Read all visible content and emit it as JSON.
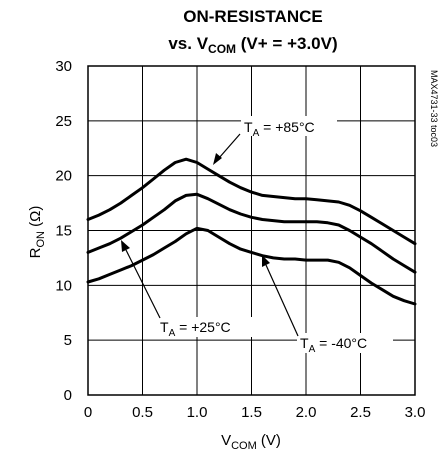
{
  "chart_data": {
    "type": "line",
    "title_line1": "ON-RESISTANCE",
    "title_line2_pre": "vs. V",
    "title_line2_sub": "COM",
    "title_line2_post": " (V+ = +3.0V)",
    "xlabel_main": "V",
    "xlabel_sub": "COM",
    "xlabel_unit": " (V)",
    "ylabel_main": "R",
    "ylabel_sub": "ON",
    "ylabel_unit": " (Ω)",
    "xlim": [
      0,
      3.0
    ],
    "ylim": [
      0,
      30
    ],
    "xticks": [
      "0",
      "0.5",
      "1.0",
      "1.5",
      "2.0",
      "2.5",
      "3.0"
    ],
    "xtick_values": [
      0,
      0.5,
      1.0,
      1.5,
      2.0,
      2.5,
      3.0
    ],
    "yticks": [
      "0",
      "5",
      "10",
      "15",
      "20",
      "25",
      "30"
    ],
    "ytick_values": [
      0,
      5,
      10,
      15,
      20,
      25,
      30
    ],
    "grid": true,
    "side_label": "MAX4731-33 toc03",
    "series": [
      {
        "name": "T_A = +85°C",
        "label_main": "T",
        "label_sub": "A",
        "label_rest": " = +85°C",
        "x": [
          0,
          0.1,
          0.2,
          0.3,
          0.4,
          0.5,
          0.6,
          0.7,
          0.8,
          0.9,
          1.0,
          1.1,
          1.2,
          1.3,
          1.4,
          1.5,
          1.6,
          1.7,
          1.8,
          1.9,
          2.0,
          2.1,
          2.2,
          2.3,
          2.4,
          2.5,
          2.6,
          2.7,
          2.8,
          2.9,
          3.0
        ],
        "y": [
          16.0,
          16.4,
          16.9,
          17.5,
          18.2,
          18.9,
          19.7,
          20.5,
          21.2,
          21.5,
          21.2,
          20.6,
          20.0,
          19.4,
          18.9,
          18.5,
          18.2,
          18.1,
          18.0,
          17.9,
          17.9,
          17.8,
          17.7,
          17.6,
          17.3,
          16.8,
          16.2,
          15.6,
          15.0,
          14.4,
          13.8
        ]
      },
      {
        "name": "T_A = +25°C",
        "label_main": "T",
        "label_sub": "A",
        "label_rest": " = +25°C",
        "x": [
          0,
          0.1,
          0.2,
          0.3,
          0.4,
          0.5,
          0.6,
          0.7,
          0.8,
          0.9,
          1.0,
          1.1,
          1.2,
          1.3,
          1.4,
          1.5,
          1.6,
          1.7,
          1.8,
          1.9,
          2.0,
          2.1,
          2.2,
          2.3,
          2.4,
          2.5,
          2.6,
          2.7,
          2.8,
          2.9,
          3.0
        ],
        "y": [
          13.0,
          13.4,
          13.8,
          14.3,
          14.9,
          15.5,
          16.2,
          16.9,
          17.7,
          18.2,
          18.3,
          17.9,
          17.4,
          16.9,
          16.5,
          16.2,
          16.0,
          15.9,
          15.8,
          15.8,
          15.8,
          15.8,
          15.7,
          15.5,
          15.0,
          14.4,
          13.8,
          13.1,
          12.4,
          11.8,
          11.2
        ]
      },
      {
        "name": "T_A = -40°C",
        "label_main": "T",
        "label_sub": "A",
        "label_rest": " = -40°C",
        "x": [
          0,
          0.1,
          0.2,
          0.3,
          0.4,
          0.5,
          0.6,
          0.7,
          0.8,
          0.9,
          1.0,
          1.1,
          1.2,
          1.3,
          1.4,
          1.5,
          1.6,
          1.7,
          1.8,
          1.9,
          2.0,
          2.1,
          2.2,
          2.3,
          2.4,
          2.5,
          2.6,
          2.7,
          2.8,
          2.9,
          3.0
        ],
        "y": [
          10.3,
          10.6,
          11.0,
          11.4,
          11.8,
          12.3,
          12.8,
          13.4,
          14.0,
          14.7,
          15.2,
          15.0,
          14.4,
          13.8,
          13.3,
          13.0,
          12.7,
          12.5,
          12.4,
          12.4,
          12.3,
          12.3,
          12.3,
          12.1,
          11.6,
          10.9,
          10.2,
          9.6,
          9.0,
          8.6,
          8.3
        ]
      }
    ]
  }
}
